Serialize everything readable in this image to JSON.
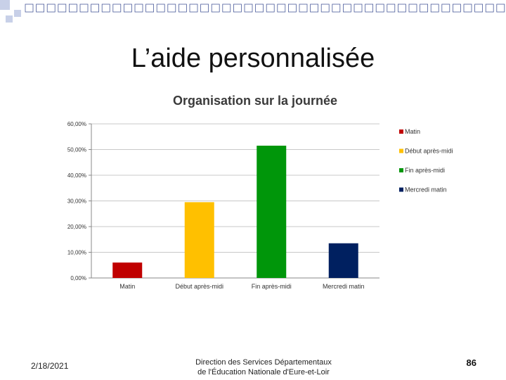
{
  "slide": {
    "title": "L’aide personnalisée",
    "footer_date": "2/18/2021",
    "footer_org_line1": "Direction des Services Départementaux",
    "footer_org_line2": "de l'Éducation Nationale d'Eure-et-Loir",
    "page_number": "86"
  },
  "colors": {
    "square_fill": "#ffffff",
    "square_border": "#4a5a9a",
    "square_accent": "#c8d0e8",
    "grid": "#c8c8c8"
  },
  "chart_data": {
    "type": "bar",
    "title": "Organisation  sur la journée",
    "categories": [
      "Matin",
      "Début après-midi",
      "Fin après-midi",
      "Mercredi matin"
    ],
    "values": [
      6.0,
      29.5,
      51.5,
      13.5
    ],
    "value_unit": "%",
    "colors": [
      "#c00000",
      "#ffc000",
      "#00960a",
      "#002060"
    ],
    "yticks": [
      "0,00%",
      "10,00%",
      "20,00%",
      "30,00%",
      "40,00%",
      "50,00%",
      "60,00%"
    ],
    "ylim": [
      0,
      60
    ],
    "grid": true,
    "legend": {
      "position": "right",
      "entries": [
        "Matin",
        "Début après-midi",
        "Fin après-midi",
        "Mercredi matin"
      ]
    }
  }
}
